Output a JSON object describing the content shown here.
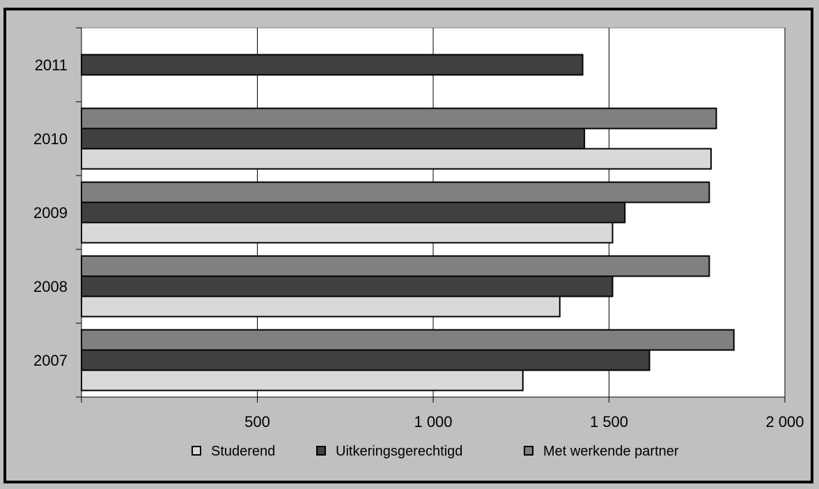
{
  "chart_data": {
    "type": "bar",
    "orientation": "horizontal",
    "categories": [
      "2011",
      "2010",
      "2009",
      "2008",
      "2007"
    ],
    "series": [
      {
        "name": "Studerend",
        "values": [
          null,
          1790,
          1510,
          1360,
          1255
        ],
        "color": "#d9d9d9"
      },
      {
        "name": "Uitkeringsgerechtigd",
        "values": [
          1425,
          1430,
          1545,
          1510,
          1615
        ],
        "color": "#404040"
      },
      {
        "name": "Met werkende partner",
        "values": [
          null,
          1805,
          1785,
          1785,
          1855
        ],
        "color": "#808080"
      }
    ],
    "xlim": [
      0,
      2000
    ],
    "xticks": [
      500,
      1000,
      1500,
      2000
    ],
    "xtick_labels": [
      "500",
      "1 000",
      "1 500",
      "2 000"
    ],
    "grid": true,
    "legend_position": "bottom"
  },
  "colors": {
    "background": "#c0c0c0",
    "plot_background": "#ffffff",
    "border": "#000000"
  }
}
